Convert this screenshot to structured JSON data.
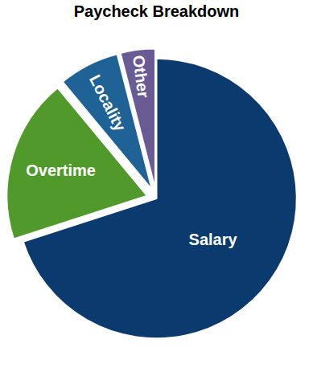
{
  "chart_data": {
    "type": "pie",
    "title": "Paycheck Breakdown",
    "categories": [
      "Salary",
      "Overtime",
      "Locality",
      "Other"
    ],
    "values": [
      70,
      19,
      7,
      4
    ],
    "colors": [
      "#0b3a6e",
      "#4f9a2a",
      "#1f6396",
      "#6b5b95"
    ]
  }
}
